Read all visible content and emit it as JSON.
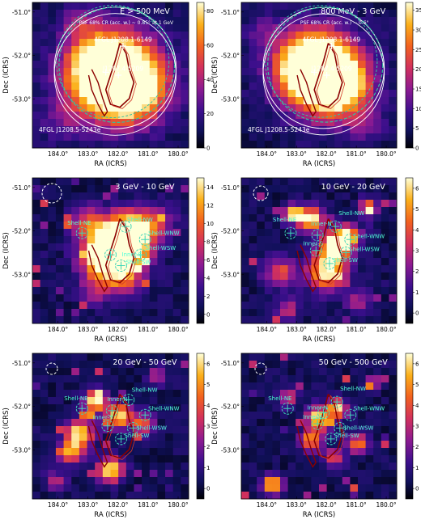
{
  "axes": {
    "xlabel": "RA (ICRS)",
    "ylabel": "Dec (ICRS)",
    "xticks": [
      "184.0°",
      "183.0°",
      "182.0°",
      "181.0°",
      "180.0°"
    ],
    "yticks": [
      "-51.0°",
      "-52.0°",
      "-53.0°"
    ]
  },
  "chart_data": [
    {
      "type": "heatmap",
      "title": "E > 500 MeV",
      "subtitle": "PSF 68% CR (acc. w.) ~ 0.85° at 1 GeV",
      "colorbar_ticks": [
        "80",
        "60",
        "40",
        "20",
        "0"
      ],
      "colorbar_range": [
        0,
        85
      ],
      "annotations": [
        "4FGL J1208.1-6149",
        "J1207.4-5209",
        "4FGL J1208.5-5243e"
      ]
    },
    {
      "type": "heatmap",
      "title": "800 MeV - 3 GeV",
      "subtitle": "PSF 68% CR (acc. w.) ~ 0.6°",
      "colorbar_ticks": [
        "35",
        "30",
        "25",
        "20",
        "15",
        "10",
        "5",
        "0"
      ],
      "colorbar_range": [
        0,
        37
      ],
      "annotations": [
        "4FGL J1208.1-6149",
        "J1207.4-5209",
        "4FGL J1208.5-5243e"
      ]
    },
    {
      "type": "heatmap",
      "title": "3 GeV - 10 GeV",
      "colorbar_ticks": [
        "14",
        "12",
        "10",
        "8",
        "6",
        "4",
        "2",
        "0"
      ],
      "colorbar_range": [
        -1,
        15
      ],
      "annotations": [
        "Shell-NE",
        "Shell-NW",
        "Shell-WNW",
        "Shell-WSW",
        "Inner-S",
        "Shell-SW"
      ]
    },
    {
      "type": "heatmap",
      "title": "10 GeV - 20 GeV",
      "colorbar_ticks": [
        "6",
        "5",
        "4",
        "3",
        "2",
        "1",
        "0"
      ],
      "colorbar_range": [
        -0.5,
        6.5
      ],
      "annotations": [
        "Shell-NE",
        "Inner-N",
        "Shell-NW",
        "Shell-WNW",
        "Shell-WSW",
        "Inner-S",
        "Shell-SW"
      ]
    },
    {
      "type": "heatmap",
      "title": "20 GeV - 50 GeV",
      "colorbar_ticks": [
        "6",
        "5",
        "4",
        "3",
        "2",
        "1",
        "0"
      ],
      "colorbar_range": [
        -0.5,
        6.5
      ],
      "annotations": [
        "Shell-NE",
        "Inner-N",
        "Shell-NW",
        "Shell-WNW",
        "Inner-S",
        "Shell-WSW",
        "Shell-SW"
      ]
    },
    {
      "type": "heatmap",
      "title": "50 GeV - 500 GeV",
      "colorbar_ticks": [
        "6",
        "5",
        "4",
        "3",
        "2",
        "1",
        "0"
      ],
      "colorbar_range": [
        -0.5,
        6.5
      ],
      "annotations": [
        "Shell-NE",
        "Shell-NW",
        "Inner-N",
        "Shell-WNW",
        "Inner-S",
        "Shell-WSW",
        "Shell-SW"
      ]
    }
  ]
}
